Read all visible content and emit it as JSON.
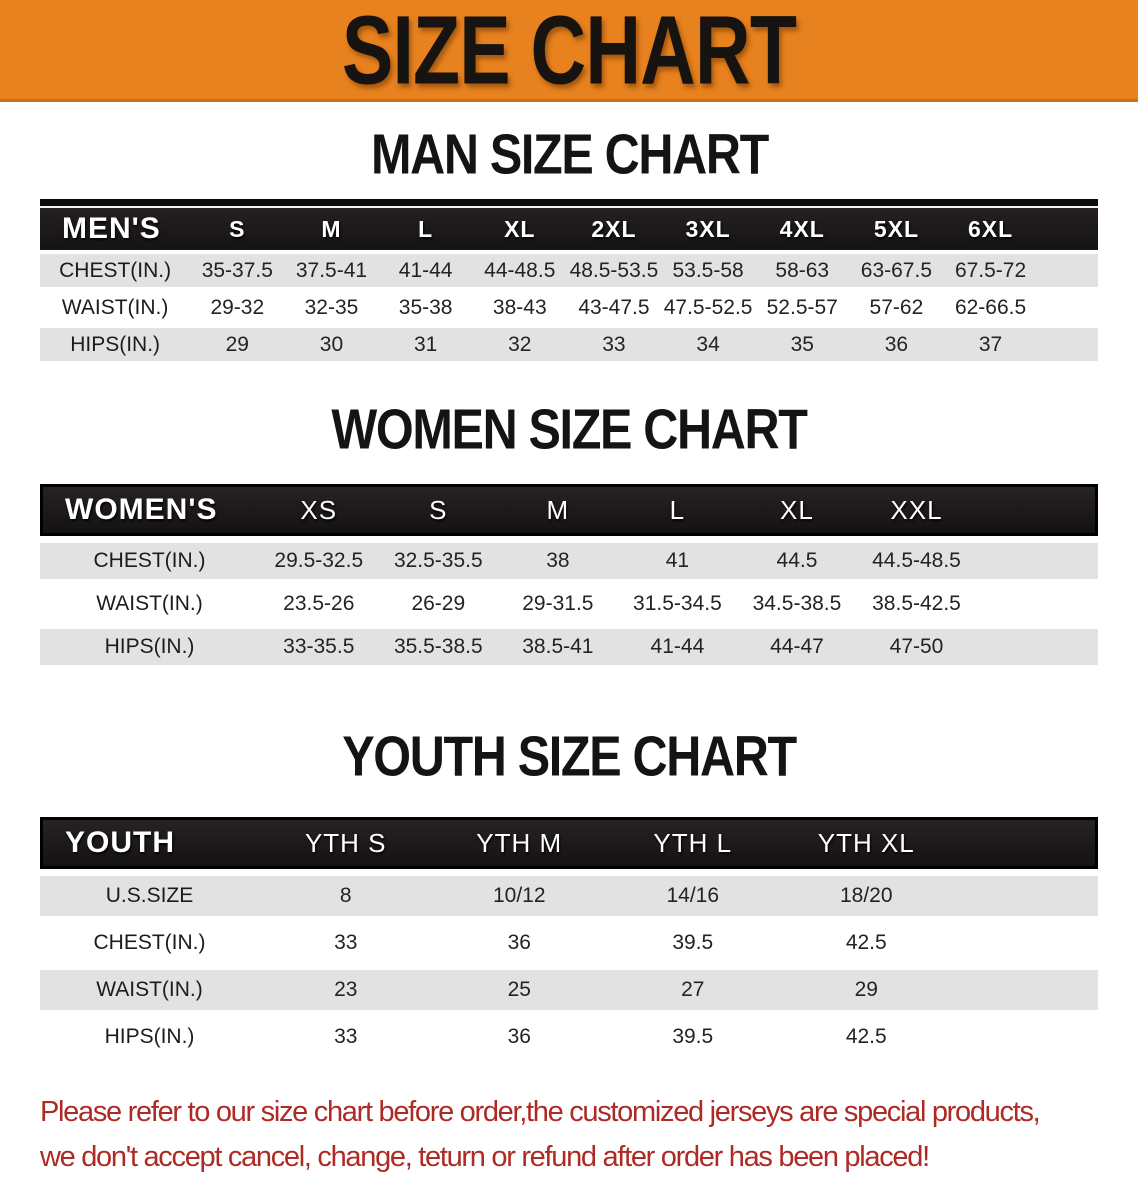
{
  "banner": {
    "title": "SIZE CHART"
  },
  "colors": {
    "banner_bg": "#E8821E",
    "header_bg": "#1c1919",
    "row_alt_gray": "#E2E2E2",
    "note_red": "#AE2B25"
  },
  "sections": [
    {
      "id": "men",
      "title": "MAN SIZE CHART",
      "corner_label": "MEN'S",
      "columns": [
        "S",
        "M",
        "L",
        "XL",
        "2XL",
        "3XL",
        "4XL",
        "5XL",
        "6XL"
      ],
      "rows": [
        {
          "label": "CHEST(IN.)",
          "values": [
            "35-37.5",
            "37.5-41",
            "41-44",
            "44-48.5",
            "48.5-53.5",
            "53.5-58",
            "58-63",
            "63-67.5",
            "67.5-72"
          ]
        },
        {
          "label": "WAIST(IN.)",
          "values": [
            "29-32",
            "32-35",
            "35-38",
            "38-43",
            "43-47.5",
            "47.5-52.5",
            "52.5-57",
            "57-62",
            "62-66.5"
          ]
        },
        {
          "label": "HIPS(IN.)",
          "values": [
            "29",
            "30",
            "31",
            "32",
            "33",
            "34",
            "35",
            "36",
            "37"
          ]
        }
      ]
    },
    {
      "id": "women",
      "title": "WOMEN SIZE CHART",
      "corner_label": "WOMEN'S",
      "columns": [
        "XS",
        "S",
        "M",
        "L",
        "XL",
        "XXL"
      ],
      "rows": [
        {
          "label": "CHEST(IN.)",
          "values": [
            "29.5-32.5",
            "32.5-35.5",
            "38",
            "41",
            "44.5",
            "44.5-48.5"
          ]
        },
        {
          "label": "WAIST(IN.)",
          "values": [
            "23.5-26",
            "26-29",
            "29-31.5",
            "31.5-34.5",
            "34.5-38.5",
            "38.5-42.5"
          ]
        },
        {
          "label": "HIPS(IN.)",
          "values": [
            "33-35.5",
            "35.5-38.5",
            "38.5-41",
            "41-44",
            "44-47",
            "47-50"
          ]
        }
      ]
    },
    {
      "id": "youth",
      "title": "YOUTH SIZE CHART",
      "corner_label": "YOUTH",
      "columns": [
        "YTH S",
        "YTH M",
        "YTH L",
        "YTH XL"
      ],
      "rows": [
        {
          "label": "U.S.SIZE",
          "values": [
            "8",
            "10/12",
            "14/16",
            "18/20"
          ]
        },
        {
          "label": "CHEST(IN.)",
          "values": [
            "33",
            "36",
            "39.5",
            "42.5"
          ]
        },
        {
          "label": "WAIST(IN.)",
          "values": [
            "23",
            "25",
            "27",
            "29"
          ]
        },
        {
          "label": "HIPS(IN.)",
          "values": [
            "33",
            "36",
            "39.5",
            "42.5"
          ]
        }
      ]
    }
  ],
  "footer": {
    "line1": "Please refer to our size chart before order,the customized jerseys are special products,",
    "line2": "we don't accept cancel, change, teturn or refund after order has been placed!"
  }
}
